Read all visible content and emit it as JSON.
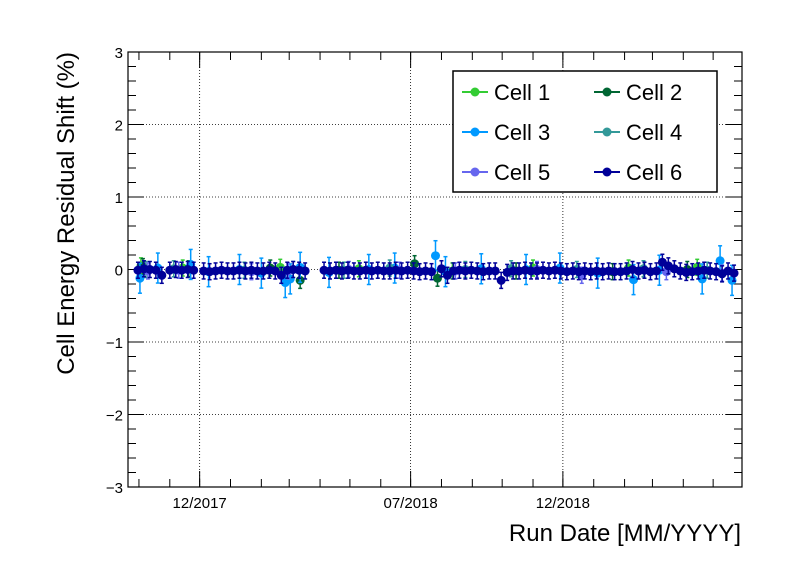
{
  "chart_data": {
    "type": "scatter",
    "xlabel": "Run Date [MM/YYYY]",
    "ylabel": "Cell Energy Residual Shift (%)",
    "ylim": [
      -3,
      3
    ],
    "xlim": [
      "2017-09-20",
      "2019-05-30"
    ],
    "y_ticks": [
      "3",
      "2",
      "1",
      "0",
      "−1",
      "−2",
      "−3"
    ],
    "x_ticks": [
      {
        "label": "12/2017",
        "date": "2017-12-01"
      },
      {
        "label": "07/2018",
        "date": "2018-07-01"
      },
      {
        "label": "12/2018",
        "date": "2018-12-01"
      }
    ],
    "grid": true,
    "legend_placement": "top-right",
    "series": [
      {
        "name": "Cell 1",
        "color": "#33cc33",
        "points": [
          [
            "2017-10-03",
            0.05
          ],
          [
            "2017-11-14",
            0.02
          ],
          [
            "2018-02-20",
            0.03
          ],
          [
            "2018-05-10",
            0.01
          ],
          [
            "2018-08-12",
            -0.02
          ],
          [
            "2018-11-01",
            0.02
          ],
          [
            "2019-02-05",
            0.02
          ],
          [
            "2019-04-15",
            0.03
          ]
        ]
      },
      {
        "name": "Cell 2",
        "color": "#006633",
        "points": [
          [
            "2017-10-05",
            0.04
          ],
          [
            "2017-11-20",
            0.01
          ],
          [
            "2018-02-10",
            0.02
          ],
          [
            "2018-03-12",
            -0.15
          ],
          [
            "2018-04-20",
            -0.01
          ],
          [
            "2018-07-05",
            0.08
          ],
          [
            "2018-07-28",
            -0.12
          ],
          [
            "2018-10-15",
            -0.02
          ],
          [
            "2019-01-20",
            -0.03
          ],
          [
            "2019-04-05",
            0.0
          ]
        ]
      },
      {
        "name": "Cell 3",
        "color": "#0099ff",
        "points": [
          [
            "2017-10-02",
            -0.12
          ],
          [
            "2017-10-20",
            0.02
          ],
          [
            "2017-11-22",
            0.07
          ],
          [
            "2017-12-10",
            -0.03
          ],
          [
            "2018-01-10",
            0.0
          ],
          [
            "2018-02-01",
            -0.05
          ],
          [
            "2018-02-25",
            -0.18
          ],
          [
            "2018-03-02",
            -0.13
          ],
          [
            "2018-03-12",
            0.03
          ],
          [
            "2018-04-10",
            -0.04
          ],
          [
            "2018-05-20",
            0.0
          ],
          [
            "2018-06-15",
            0.02
          ],
          [
            "2018-07-26",
            0.19
          ],
          [
            "2018-08-05",
            -0.03
          ],
          [
            "2018-09-10",
            0.01
          ],
          [
            "2018-10-25",
            0.0
          ],
          [
            "2018-11-28",
            0.02
          ],
          [
            "2019-01-05",
            -0.05
          ],
          [
            "2019-02-10",
            -0.14
          ],
          [
            "2019-03-08",
            -0.01
          ],
          [
            "2019-04-20",
            -0.13
          ],
          [
            "2019-05-08",
            0.12
          ],
          [
            "2019-05-20",
            -0.15
          ]
        ]
      },
      {
        "name": "Cell 4",
        "color": "#339999",
        "points": [
          [
            "2017-10-08",
            0.0
          ],
          [
            "2017-11-05",
            0.01
          ],
          [
            "2018-01-15",
            -0.01
          ],
          [
            "2018-03-05",
            0.0
          ],
          [
            "2018-04-25",
            -0.01
          ],
          [
            "2018-06-10",
            0.02
          ],
          [
            "2018-08-25",
            0.0
          ],
          [
            "2018-10-10",
            0.01
          ],
          [
            "2018-12-15",
            0.0
          ],
          [
            "2019-02-20",
            0.01
          ],
          [
            "2019-04-25",
            -0.01
          ]
        ]
      },
      {
        "name": "Cell 5",
        "color": "#6666ee",
        "points": [
          [
            "2017-10-10",
            -0.02
          ],
          [
            "2017-11-10",
            -0.01
          ],
          [
            "2018-01-22",
            -0.03
          ],
          [
            "2018-02-28",
            -0.02
          ],
          [
            "2018-04-30",
            0.0
          ],
          [
            "2018-06-20",
            -0.01
          ],
          [
            "2018-08-15",
            -0.02
          ],
          [
            "2018-11-05",
            0.0
          ],
          [
            "2018-12-20",
            -0.08
          ],
          [
            "2019-03-15",
            -0.03
          ],
          [
            "2019-05-10",
            -0.05
          ]
        ]
      },
      {
        "name": "Cell 6",
        "color": "#000099",
        "points": [
          [
            "2017-09-30",
            -0.01
          ],
          [
            "2017-10-06",
            0.01
          ],
          [
            "2017-10-12",
            0.0
          ],
          [
            "2017-10-18",
            -0.01
          ],
          [
            "2017-10-24",
            -0.08
          ],
          [
            "2017-11-01",
            -0.01
          ],
          [
            "2017-11-07",
            0.0
          ],
          [
            "2017-11-13",
            -0.01
          ],
          [
            "2017-11-19",
            0.0
          ],
          [
            "2017-11-25",
            -0.01
          ],
          [
            "2017-12-05",
            -0.02
          ],
          [
            "2017-12-11",
            -0.03
          ],
          [
            "2017-12-17",
            -0.02
          ],
          [
            "2017-12-23",
            -0.01
          ],
          [
            "2017-12-29",
            -0.02
          ],
          [
            "2018-01-04",
            -0.02
          ],
          [
            "2018-01-10",
            -0.01
          ],
          [
            "2018-01-16",
            -0.02
          ],
          [
            "2018-01-22",
            -0.01
          ],
          [
            "2018-01-28",
            -0.02
          ],
          [
            "2018-02-03",
            -0.02
          ],
          [
            "2018-02-09",
            -0.01
          ],
          [
            "2018-02-15",
            -0.02
          ],
          [
            "2018-02-21",
            -0.08
          ],
          [
            "2018-02-27",
            -0.01
          ],
          [
            "2018-03-05",
            0.0
          ],
          [
            "2018-03-11",
            -0.01
          ],
          [
            "2018-03-17",
            -0.02
          ],
          [
            "2018-04-05",
            -0.01
          ],
          [
            "2018-04-11",
            -0.02
          ],
          [
            "2018-04-17",
            -0.01
          ],
          [
            "2018-04-23",
            -0.02
          ],
          [
            "2018-04-29",
            -0.01
          ],
          [
            "2018-05-05",
            -0.02
          ],
          [
            "2018-05-11",
            -0.02
          ],
          [
            "2018-05-17",
            -0.01
          ],
          [
            "2018-05-23",
            -0.02
          ],
          [
            "2018-05-29",
            -0.01
          ],
          [
            "2018-06-04",
            -0.02
          ],
          [
            "2018-06-10",
            -0.02
          ],
          [
            "2018-06-16",
            -0.01
          ],
          [
            "2018-06-22",
            -0.02
          ],
          [
            "2018-06-28",
            -0.01
          ],
          [
            "2018-07-04",
            -0.02
          ],
          [
            "2018-07-10",
            -0.03
          ],
          [
            "2018-07-16",
            -0.02
          ],
          [
            "2018-07-22",
            -0.03
          ],
          [
            "2018-08-01",
            0.01
          ],
          [
            "2018-08-07",
            -0.08
          ],
          [
            "2018-08-13",
            -0.02
          ],
          [
            "2018-08-19",
            -0.01
          ],
          [
            "2018-08-25",
            -0.02
          ],
          [
            "2018-08-31",
            -0.01
          ],
          [
            "2018-09-06",
            -0.02
          ],
          [
            "2018-09-12",
            -0.03
          ],
          [
            "2018-09-18",
            -0.02
          ],
          [
            "2018-09-24",
            -0.02
          ],
          [
            "2018-09-30",
            -0.15
          ],
          [
            "2018-10-06",
            -0.04
          ],
          [
            "2018-10-12",
            -0.02
          ],
          [
            "2018-10-18",
            -0.02
          ],
          [
            "2018-10-24",
            -0.01
          ],
          [
            "2018-10-30",
            -0.02
          ],
          [
            "2018-11-05",
            -0.02
          ],
          [
            "2018-11-11",
            -0.01
          ],
          [
            "2018-11-17",
            -0.02
          ],
          [
            "2018-11-23",
            -0.01
          ],
          [
            "2018-11-29",
            -0.02
          ],
          [
            "2018-12-05",
            -0.03
          ],
          [
            "2018-12-11",
            -0.02
          ],
          [
            "2018-12-17",
            -0.03
          ],
          [
            "2018-12-23",
            -0.02
          ],
          [
            "2018-12-29",
            -0.03
          ],
          [
            "2019-01-04",
            -0.02
          ],
          [
            "2019-01-10",
            -0.03
          ],
          [
            "2019-01-16",
            -0.02
          ],
          [
            "2019-01-22",
            -0.03
          ],
          [
            "2019-01-28",
            -0.03
          ],
          [
            "2019-02-03",
            -0.02
          ],
          [
            "2019-02-09",
            0.0
          ],
          [
            "2019-02-15",
            -0.02
          ],
          [
            "2019-02-21",
            -0.01
          ],
          [
            "2019-02-27",
            -0.03
          ],
          [
            "2019-03-05",
            -0.02
          ],
          [
            "2019-03-11",
            0.1
          ],
          [
            "2019-03-17",
            0.05
          ],
          [
            "2019-03-23",
            0.01
          ],
          [
            "2019-03-29",
            -0.02
          ],
          [
            "2019-04-04",
            -0.04
          ],
          [
            "2019-04-10",
            -0.03
          ],
          [
            "2019-04-16",
            -0.02
          ],
          [
            "2019-04-22",
            -0.01
          ],
          [
            "2019-04-28",
            -0.02
          ],
          [
            "2019-05-04",
            -0.03
          ],
          [
            "2019-05-10",
            -0.06
          ],
          [
            "2019-05-16",
            -0.02
          ],
          [
            "2019-05-22",
            -0.05
          ]
        ]
      }
    ]
  }
}
